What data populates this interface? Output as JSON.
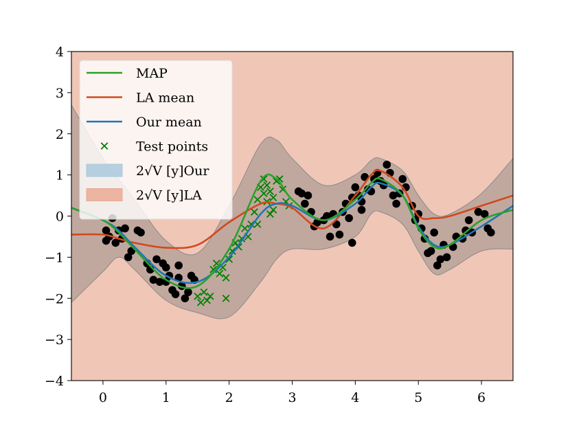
{
  "chart_data": {
    "type": "line",
    "title": "",
    "xlabel": "",
    "ylabel": "",
    "xlim": [
      -0.5,
      6.5
    ],
    "ylim": [
      -4,
      4
    ],
    "xticks": [
      0,
      1,
      2,
      3,
      4,
      5,
      6
    ],
    "yticks": [
      -4,
      -3,
      -2,
      -1,
      0,
      1,
      2,
      3,
      4
    ],
    "xtick_labels": [
      "0",
      "1",
      "2",
      "3",
      "4",
      "5",
      "6"
    ],
    "ytick_labels": [
      "−4",
      "−3",
      "−2",
      "−1",
      "0",
      "1",
      "2",
      "3",
      "4"
    ],
    "grid": false,
    "legend_position": "top-left",
    "colors": {
      "map": "#2ca02c",
      "la_mean": "#d1491c",
      "our_mean": "#1f77b4",
      "test_points": "#008000",
      "train_points": "#000000",
      "our_band": "#a9c9dc",
      "la_band": "#e8a994",
      "background_band": "#f0c6b6"
    },
    "legend": [
      {
        "label": "MAP",
        "kind": "line",
        "color": "#2ca02c"
      },
      {
        "label": "LA mean",
        "kind": "line",
        "color": "#d1491c"
      },
      {
        "label": "Our mean",
        "kind": "line",
        "color": "#1f77b4"
      },
      {
        "label": "Test points",
        "kind": "marker",
        "color": "#008000"
      },
      {
        "label": "2√V [y]Our",
        "kind": "patch",
        "color": "#a9c9dc"
      },
      {
        "label": "2√V [y]LA",
        "kind": "patch",
        "color": "#e8a994"
      }
    ],
    "x": [
      -0.5,
      0.0,
      0.25,
      0.5,
      1.0,
      1.5,
      2.0,
      2.5,
      2.75,
      3.0,
      3.5,
      4.0,
      4.25,
      4.4,
      4.75,
      5.0,
      5.25,
      5.5,
      6.0,
      6.5
    ],
    "series": [
      {
        "name": "MAP",
        "values": [
          0.2,
          -0.1,
          -0.4,
          -0.8,
          -1.55,
          -1.7,
          -0.8,
          0.85,
          0.9,
          0.4,
          -0.1,
          0.4,
          0.8,
          0.9,
          0.5,
          -0.3,
          -0.75,
          -0.7,
          -0.1,
          0.15
        ]
      },
      {
        "name": "LA mean",
        "values": [
          -0.45,
          -0.45,
          -0.55,
          -0.65,
          -0.77,
          -0.7,
          -0.15,
          0.3,
          0.3,
          0.2,
          -0.3,
          0.5,
          1.0,
          1.1,
          0.7,
          0.0,
          -0.05,
          0.0,
          0.25,
          0.5
        ]
      },
      {
        "name": "Our mean",
        "values": [
          0.2,
          -0.1,
          -0.35,
          -0.75,
          -1.45,
          -1.6,
          -1.0,
          0.05,
          0.3,
          0.25,
          -0.1,
          0.3,
          0.7,
          0.8,
          0.5,
          -0.25,
          -0.7,
          -0.7,
          -0.25,
          0.25
        ]
      }
    ],
    "our_band": {
      "upper": [
        2.7,
        1.4,
        0.9,
        0.4,
        -0.6,
        -0.9,
        0.25,
        1.75,
        1.85,
        1.4,
        0.75,
        1.0,
        1.35,
        1.4,
        1.1,
        0.5,
        0.05,
        0.05,
        0.55,
        1.4
      ],
      "lower": [
        -2.1,
        -1.35,
        -1.0,
        -1.3,
        -2.05,
        -2.35,
        -2.45,
        -1.6,
        -1.05,
        -0.8,
        -0.8,
        -0.5,
        0.05,
        0.1,
        -0.2,
        -0.85,
        -1.4,
        -1.3,
        -0.85,
        -0.8
      ]
    },
    "la_band": {
      "upper": 4,
      "lower": -4
    },
    "train_points": [
      [
        0.05,
        -0.35
      ],
      [
        0.05,
        -0.6
      ],
      [
        0.1,
        -0.5
      ],
      [
        0.15,
        -0.05
      ],
      [
        0.2,
        -0.65
      ],
      [
        0.25,
        -0.35
      ],
      [
        0.3,
        -0.55
      ],
      [
        0.35,
        -0.3
      ],
      [
        0.4,
        -1.0
      ],
      [
        0.45,
        -0.85
      ],
      [
        0.55,
        -0.35
      ],
      [
        0.6,
        -0.4
      ],
      [
        0.7,
        -1.15
      ],
      [
        0.75,
        -1.3
      ],
      [
        0.8,
        -1.55
      ],
      [
        0.85,
        -1.05
      ],
      [
        0.9,
        -1.6
      ],
      [
        0.95,
        -1.15
      ],
      [
        1.0,
        -1.25
      ],
      [
        1.0,
        -1.6
      ],
      [
        1.05,
        -1.45
      ],
      [
        1.1,
        -1.8
      ],
      [
        1.15,
        -1.9
      ],
      [
        1.2,
        -1.2
      ],
      [
        1.2,
        -1.5
      ],
      [
        1.25,
        -1.7
      ],
      [
        1.3,
        -2.0
      ],
      [
        1.35,
        -1.85
      ],
      [
        1.4,
        -1.45
      ],
      [
        1.45,
        -1.55
      ],
      [
        3.1,
        0.6
      ],
      [
        3.15,
        0.55
      ],
      [
        3.2,
        0.3
      ],
      [
        3.25,
        0.5
      ],
      [
        3.3,
        0.1
      ],
      [
        3.35,
        -0.25
      ],
      [
        3.4,
        -0.15
      ],
      [
        3.5,
        -0.1
      ],
      [
        3.55,
        0.0
      ],
      [
        3.6,
        -0.5
      ],
      [
        3.65,
        0.05
      ],
      [
        3.7,
        -0.2
      ],
      [
        3.75,
        -0.45
      ],
      [
        3.8,
        0.1
      ],
      [
        3.85,
        0.3
      ],
      [
        3.9,
        -0.05
      ],
      [
        3.95,
        0.45
      ],
      [
        3.95,
        -0.65
      ],
      [
        4.0,
        0.7
      ],
      [
        4.05,
        0.5
      ],
      [
        4.1,
        0.15
      ],
      [
        4.1,
        0.35
      ],
      [
        4.15,
        0.95
      ],
      [
        4.2,
        0.65
      ],
      [
        4.25,
        0.6
      ],
      [
        4.3,
        0.9
      ],
      [
        4.35,
        1.05
      ],
      [
        4.4,
        0.85
      ],
      [
        4.45,
        0.75
      ],
      [
        4.5,
        1.25
      ],
      [
        4.55,
        1.05
      ],
      [
        4.6,
        0.5
      ],
      [
        4.65,
        0.3
      ],
      [
        4.7,
        0.55
      ],
      [
        4.75,
        0.9
      ],
      [
        4.8,
        0.7
      ],
      [
        4.9,
        0.25
      ],
      [
        4.95,
        -0.1
      ],
      [
        5.0,
        0.05
      ],
      [
        5.05,
        -0.3
      ],
      [
        5.1,
        -0.55
      ],
      [
        5.15,
        -0.9
      ],
      [
        5.2,
        -0.85
      ],
      [
        5.25,
        -0.4
      ],
      [
        5.3,
        -1.2
      ],
      [
        5.35,
        -1.05
      ],
      [
        5.4,
        -0.7
      ],
      [
        5.45,
        -1.0
      ],
      [
        5.55,
        -0.75
      ],
      [
        5.6,
        -0.5
      ],
      [
        5.7,
        -0.55
      ],
      [
        5.75,
        -0.35
      ],
      [
        5.8,
        -0.1
      ],
      [
        5.85,
        -0.4
      ],
      [
        5.95,
        0.1
      ],
      [
        6.05,
        0.05
      ],
      [
        6.1,
        -0.3
      ],
      [
        6.15,
        -0.4
      ]
    ],
    "test_points": [
      [
        1.5,
        -1.95
      ],
      [
        1.55,
        -2.1
      ],
      [
        1.6,
        -1.85
      ],
      [
        1.65,
        -2.05
      ],
      [
        1.7,
        -1.95
      ],
      [
        1.75,
        -1.3
      ],
      [
        1.8,
        -1.15
      ],
      [
        1.85,
        -1.4
      ],
      [
        1.9,
        -1.25
      ],
      [
        1.95,
        -1.5
      ],
      [
        1.95,
        -2.0
      ],
      [
        2.0,
        -1.05
      ],
      [
        2.05,
        -0.85
      ],
      [
        2.1,
        -0.65
      ],
      [
        2.15,
        -0.75
      ],
      [
        2.2,
        -0.55
      ],
      [
        2.25,
        -0.3
      ],
      [
        2.3,
        -0.5
      ],
      [
        2.35,
        -0.2
      ],
      [
        2.4,
        0.1
      ],
      [
        2.45,
        0.4
      ],
      [
        2.5,
        0.7
      ],
      [
        2.55,
        0.55
      ],
      [
        2.6,
        0.35
      ],
      [
        2.6,
        0.75
      ],
      [
        2.65,
        0.6
      ],
      [
        2.7,
        0.45
      ],
      [
        2.75,
        0.85
      ],
      [
        2.8,
        0.9
      ],
      [
        2.85,
        0.65
      ],
      [
        2.9,
        0.35
      ],
      [
        2.95,
        0.25
      ],
      [
        2.55,
        0.9
      ],
      [
        2.65,
        0.05
      ],
      [
        2.45,
        -0.2
      ],
      [
        2.7,
        0.15
      ]
    ]
  }
}
